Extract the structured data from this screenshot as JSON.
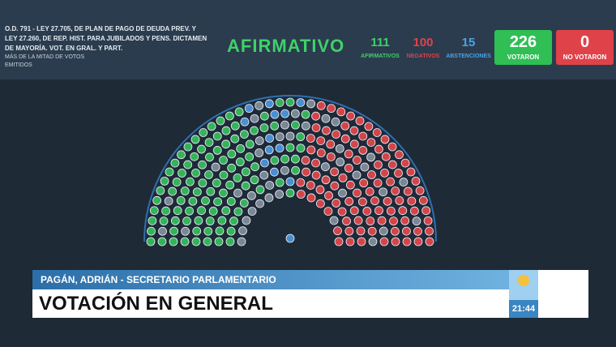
{
  "header": {
    "description": "O.D. 791 - LEY 27.705, DE PLAN DE PAGO DE DEUDA PREV. Y LEY 27.260, DE REP. HIST. PARA JUBILADOS Y PENS. DICTAMEN DE MAYORÍA. VOT. EN GRAL. Y PART.",
    "majority": "MÁS DE LA MITAD DE VOTOS EMITIDOS",
    "result": "AFIRMATIVO",
    "counts": [
      {
        "value": 111,
        "label": "AFIRMATIVOS"
      },
      {
        "value": 100,
        "label": "NEGATIVOS"
      },
      {
        "value": 15,
        "label": "ABSTENCIONES"
      }
    ],
    "totals": [
      {
        "value": 226,
        "label": "VOTARON"
      },
      {
        "value": 0,
        "label": "NO VOTARON"
      }
    ]
  },
  "lower_third": {
    "speaker": "PAGÁN, ADRIÁN - SECRETARIO PARLAMENTARIO",
    "headline": "VOTACIÓN EN GENERAL",
    "time": "21:44"
  }
}
